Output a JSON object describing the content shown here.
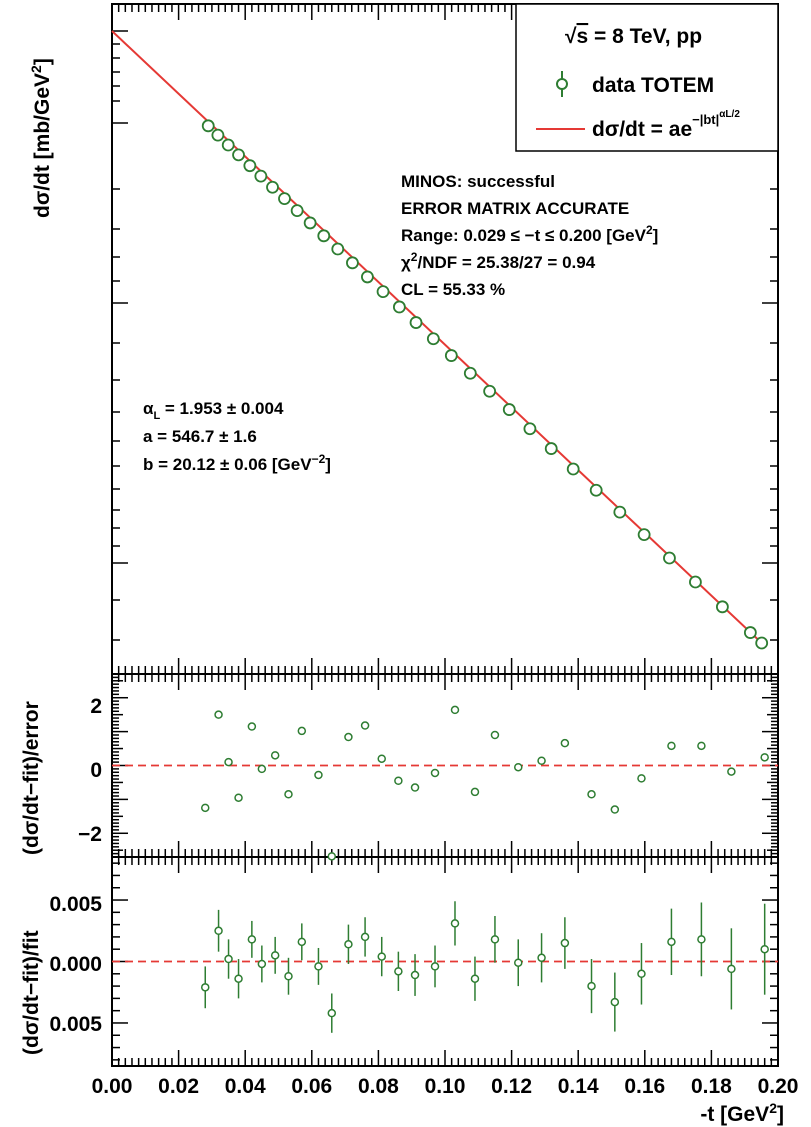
{
  "chart_data": [
    {
      "type": "line",
      "panel": "main",
      "ylabel": "dσ/dt [mb/GeV²]",
      "ylabel_parts": {
        "main": "dσ/dt [mb/GeV",
        "sup": "2",
        "end": "]"
      },
      "xlim": [
        0.0,
        0.2
      ],
      "log_y": true,
      "legend": {
        "placement": "top-right",
        "header": "√s = 8 TeV, pp",
        "header_parts": {
          "root": "√",
          "s": "s",
          "rest": " = 8 TeV, pp"
        },
        "entries": [
          {
            "name": "data TOTEM",
            "marker": "open-circle",
            "color": "#2e7d32"
          },
          {
            "name": "dσ/dt = ae^(−|bt|^(αL/2))",
            "main": "dσ/dt = ae",
            "sup": "−|bt|",
            "supsup": "αL/2",
            "color": "#e53935"
          }
        ]
      },
      "annotations": {
        "fit_status": [
          "MINOS: successful",
          "ERROR MATRIX ACCURATE",
          "Range: 0.029 ≤ −t ≤ 0.200 [GeV²]",
          "χ²/NDF = 25.38/27 = 0.94",
          "CL = 55.33 %"
        ],
        "range_parts": {
          "main": "Range: 0.029 ≤ −t ≤ 0.200 [GeV",
          "sup": "2",
          "end": "]"
        },
        "chi_parts": {
          "chi": "χ",
          "sup": "2",
          "rest": "/NDF = 25.38/27 = 0.94"
        },
        "parameters": [
          "αL = 1.953 ± 0.004",
          "a = 546.7 ± 1.6",
          "b = 20.12 ± 0.06 [GeV⁻²]"
        ],
        "alpha_parts": {
          "alpha": "α",
          "sub": "L",
          "rest": " = 1.953 ± 0.004"
        },
        "b_parts": {
          "main": "b = 20.12 ± 0.06 [GeV",
          "sup": "−2",
          "end": "]"
        }
      },
      "fit_params": {
        "alpha_L": 1.953,
        "a": 546.7,
        "b": 20.12
      },
      "series": [
        {
          "name": "data TOTEM",
          "x": [
            0.0289,
            0.0318,
            0.0349,
            0.038,
            0.0414,
            0.0447,
            0.0482,
            0.0518,
            0.0556,
            0.0595,
            0.0636,
            0.0678,
            0.0722,
            0.0767,
            0.0814,
            0.0863,
            0.0913,
            0.0965,
            0.1019,
            0.1076,
            0.1134,
            0.1193,
            0.1255,
            0.1319,
            0.1385,
            0.1454,
            0.1525,
            0.1598,
            0.1674,
            0.1752,
            0.1833,
            0.1917,
            0.1951
          ]
        }
      ]
    },
    {
      "type": "scatter",
      "panel": "residual-normalized",
      "ylabel": "(dσ/dt−fit)/error",
      "ylim": [
        -2.7,
        2.7
      ],
      "yticks": [
        "−2",
        "0",
        "2"
      ],
      "reference_line": 0,
      "series": [
        {
          "name": "",
          "x": [
            0.028,
            0.032,
            0.035,
            0.038,
            0.042,
            0.045,
            0.049,
            0.053,
            0.057,
            0.062,
            0.066,
            0.071,
            0.076,
            0.081,
            0.086,
            0.091,
            0.097,
            0.103,
            0.109,
            0.115,
            0.122,
            0.129,
            0.136,
            0.144,
            0.151,
            0.159,
            0.168,
            0.177,
            0.186,
            0.196
          ],
          "y": [
            -1.25,
            1.5,
            0.1,
            -0.95,
            1.15,
            -0.1,
            0.3,
            -0.85,
            1.02,
            -0.28,
            -2.68,
            0.84,
            1.18,
            0.2,
            -0.45,
            -0.65,
            -0.22,
            1.64,
            -0.78,
            0.9,
            -0.05,
            0.14,
            0.66,
            -0.85,
            -1.3,
            -0.38,
            0.58,
            0.58,
            -0.18,
            0.24
          ]
        }
      ]
    },
    {
      "type": "scatter",
      "panel": "residual-relative",
      "xlabel": "-t [GeV²]",
      "xlabel_parts": {
        "main": "-t [GeV",
        "sup": "2",
        "end": "]"
      },
      "ylabel": "(dσ/dt−fit)/fit",
      "xlim": [
        0.0,
        0.2
      ],
      "ylim": [
        -0.0085,
        0.0085
      ],
      "xticks": [
        "0.00",
        "0.02",
        "0.04",
        "0.06",
        "0.08",
        "0.10",
        "0.12",
        "0.14",
        "0.16",
        "0.18",
        "0.20"
      ],
      "yticks": [
        "0.005",
        "0.000",
        "0.005"
      ],
      "reference_line": 0,
      "series": [
        {
          "name": "",
          "x": [
            0.028,
            0.032,
            0.035,
            0.038,
            0.042,
            0.045,
            0.049,
            0.053,
            0.057,
            0.062,
            0.066,
            0.071,
            0.076,
            0.081,
            0.086,
            0.091,
            0.097,
            0.103,
            0.109,
            0.115,
            0.122,
            0.129,
            0.136,
            0.144,
            0.151,
            0.159,
            0.168,
            0.177,
            0.186,
            0.196
          ],
          "y": [
            -0.0021,
            0.0025,
            0.0002,
            -0.0014,
            0.0018,
            -0.0002,
            0.0005,
            -0.0012,
            0.0016,
            -0.0004,
            -0.0042,
            0.0014,
            0.002,
            0.0004,
            -0.0008,
            -0.0011,
            -0.0004,
            0.0031,
            -0.0014,
            0.0018,
            -0.0001,
            0.0003,
            0.0015,
            -0.002,
            -0.0033,
            -0.001,
            0.0016,
            0.0018,
            -0.0006,
            0.001
          ],
          "err": [
            0.0017,
            0.0017,
            0.0016,
            0.0016,
            0.0015,
            0.0015,
            0.0015,
            0.0015,
            0.0015,
            0.0015,
            0.0016,
            0.0016,
            0.0016,
            0.0016,
            0.0016,
            0.0017,
            0.0017,
            0.0018,
            0.0018,
            0.0019,
            0.0019,
            0.002,
            0.0021,
            0.0022,
            0.0024,
            0.0025,
            0.0027,
            0.003,
            0.0033,
            0.0037
          ]
        }
      ]
    }
  ],
  "colors": {
    "data": "#2e7d32",
    "fit": "#e53935",
    "zero_line": "#e53935",
    "axis": "#000000"
  }
}
